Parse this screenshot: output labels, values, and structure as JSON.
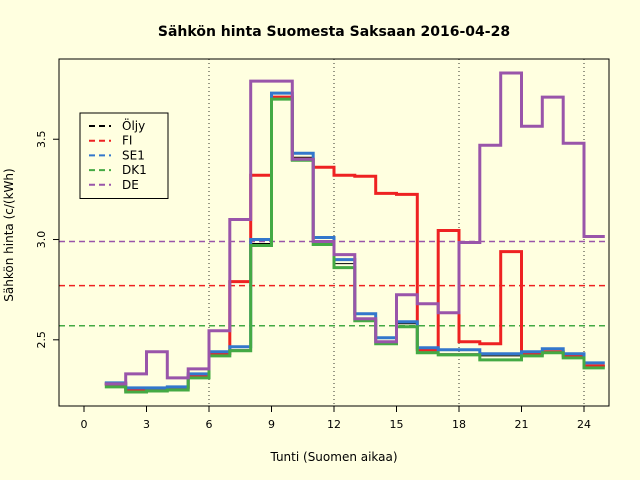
{
  "chart_data": {
    "type": "line",
    "step": true,
    "title": "Sähkön hinta Suomesta Saksaan 2016-04-28",
    "xlabel": "Tunti (Suomen aikaa)",
    "ylabel": "Sähkön hinta (c/(kWh)",
    "xlim": [
      -1.2,
      25.2
    ],
    "ylim": [
      2.17,
      3.9
    ],
    "x_ticks": [
      0,
      3,
      6,
      9,
      12,
      15,
      18,
      21,
      24
    ],
    "y_ticks": [
      2.5,
      3.0,
      3.5
    ],
    "y_tick_labels": [
      "2.5",
      "3.0",
      "3.5"
    ],
    "vertical_gridlines": [
      6,
      12,
      18,
      24
    ],
    "legend_position": "top-left",
    "reference_lines": [
      {
        "name": "FI",
        "y": 2.77,
        "color": "#EE2222"
      },
      {
        "name": "DE",
        "y": 2.99,
        "color": "#9955AA"
      },
      {
        "name": "DK1",
        "y": 2.57,
        "color": "#44AA44"
      }
    ],
    "series": [
      {
        "name": "Öljy",
        "color": "#000000",
        "values": [
          2.275,
          2.25,
          2.25,
          2.255,
          2.32,
          2.43,
          2.45,
          2.98,
          3.71,
          3.41,
          2.98,
          2.88,
          2.6,
          2.49,
          2.58,
          2.44,
          2.43,
          2.43,
          2.42,
          2.42,
          2.43,
          2.44,
          2.42,
          2.37
        ]
      },
      {
        "name": "FI",
        "color": "#EE2222",
        "values": [
          2.28,
          2.25,
          2.25,
          2.26,
          2.32,
          2.43,
          2.79,
          3.32,
          3.71,
          3.4,
          3.36,
          3.32,
          3.315,
          3.23,
          3.225,
          2.45,
          3.045,
          2.49,
          2.48,
          2.94,
          2.43,
          2.44,
          2.42,
          2.37
        ]
      },
      {
        "name": "SE1",
        "color": "#3377CC",
        "values": [
          2.285,
          2.26,
          2.26,
          2.265,
          2.33,
          2.44,
          2.465,
          3.0,
          3.73,
          3.43,
          3.01,
          2.9,
          2.63,
          2.51,
          2.59,
          2.46,
          2.45,
          2.45,
          2.43,
          2.43,
          2.44,
          2.455,
          2.43,
          2.385
        ]
      },
      {
        "name": "DK1",
        "color": "#44AA44",
        "values": [
          2.265,
          2.24,
          2.245,
          2.25,
          2.31,
          2.42,
          2.445,
          2.97,
          3.7,
          3.395,
          2.975,
          2.86,
          2.595,
          2.48,
          2.565,
          2.435,
          2.425,
          2.425,
          2.4,
          2.4,
          2.42,
          2.435,
          2.41,
          2.36
        ]
      },
      {
        "name": "DE",
        "color": "#9955AA",
        "values": [
          2.28,
          2.33,
          2.44,
          2.31,
          2.355,
          2.545,
          3.1,
          3.79,
          3.79,
          3.4,
          2.99,
          2.925,
          2.605,
          2.49,
          2.725,
          2.68,
          2.635,
          2.985,
          3.47,
          3.83,
          3.565,
          3.71,
          3.48,
          3.015
        ]
      }
    ]
  }
}
